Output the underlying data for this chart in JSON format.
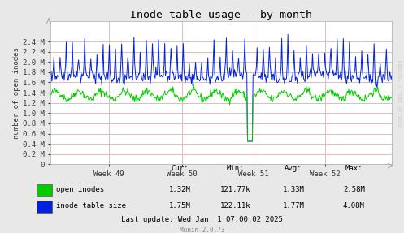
{
  "title": "Inode table usage - by month",
  "ylabel": "number of open inodes",
  "xlabel_ticks": [
    "Week 49",
    "Week 50",
    "Week 51",
    "Week 52"
  ],
  "xlabel_tick_positions": [
    0.17,
    0.385,
    0.595,
    0.805
  ],
  "ylim": [
    0,
    2800000.0
  ],
  "yticks": [
    0.0,
    200000.0,
    400000.0,
    600000.0,
    800000.0,
    1000000.0,
    1200000.0,
    1400000.0,
    1600000.0,
    1800000.0,
    2000000.0,
    2200000.0,
    2400000.0
  ],
  "ytick_labels": [
    "0",
    "0.2 M",
    "0.4 M",
    "0.6 M",
    "0.8 M",
    "1.0 M",
    "1.2 M",
    "1.4 M",
    "1.6 M",
    "1.8 M",
    "2.0 M",
    "2.2 M",
    "2.4 M"
  ],
  "background_color": "#e8e8e8",
  "plot_bg_color": "#ffffff",
  "grid_color": "#ddbbbb",
  "green_color": "#00cc00",
  "blue_color": "#0022e0",
  "title_color": "#000000",
  "label_color": "#333333",
  "watermark": "RRDTOOL / TOBI OETIKER",
  "footer_text": "Munin 2.0.73",
  "legend": {
    "series": [
      "open inodes",
      "inode table size"
    ],
    "colors": [
      "#00cc00",
      "#0022e0"
    ],
    "cur": [
      "1.32M",
      "1.75M"
    ],
    "min": [
      "121.77k",
      "122.11k"
    ],
    "avg": [
      "1.33M",
      "1.77M"
    ],
    "max": [
      "2.58M",
      "4.08M"
    ]
  },
  "last_update": "Last update: Wed Jan  1 07:00:02 2025",
  "n_points": 500
}
